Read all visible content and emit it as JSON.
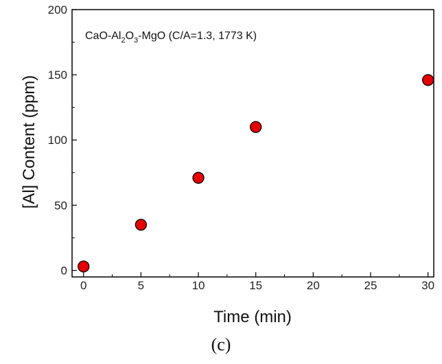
{
  "chart_data": {
    "type": "scatter",
    "annotation": {
      "prefix": "CaO-Al",
      "sub1": "2",
      "mid": "O",
      "sub2": "3",
      "suffix": "-MgO (C/A=1.3, 1773 K)"
    },
    "xlabel": "Time (min)",
    "ylabel": "[Al] Content (ppm)",
    "xlim": [
      -1,
      30.5
    ],
    "ylim": [
      -5,
      200
    ],
    "xticks": [
      0,
      5,
      10,
      15,
      20,
      25,
      30
    ],
    "yticks": [
      0,
      50,
      100,
      150,
      200
    ],
    "x": [
      0,
      5,
      10,
      15,
      30
    ],
    "y": [
      3,
      35,
      71,
      110,
      146
    ],
    "marker_color": "#e60000",
    "marker_edge": "#000000",
    "grid": false
  },
  "caption": "(c)"
}
